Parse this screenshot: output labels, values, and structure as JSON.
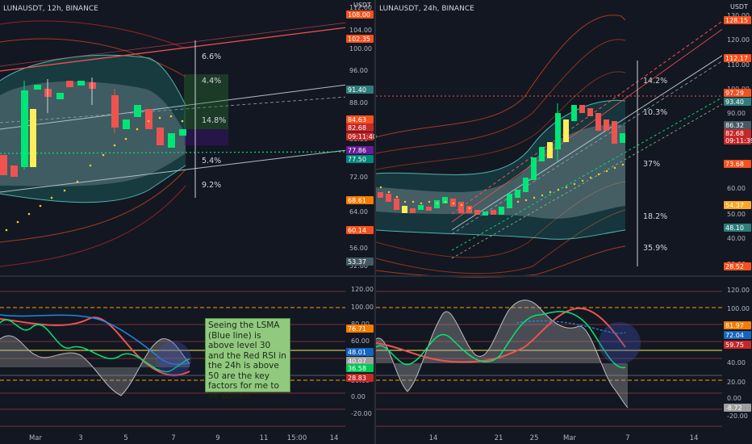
{
  "left_chart": {
    "title": "LUNAUSDT, 12h, BINANCE",
    "currency": "USDT",
    "price_ticks": [
      "112.00",
      "104.00",
      "100.00",
      "96.00",
      "88.00",
      "80.00",
      "72.00",
      "64.00",
      "56.00",
      "52.00"
    ],
    "price_tags": [
      {
        "text": "108.00",
        "color": "#f4511e"
      },
      {
        "text": "102.35",
        "color": "#f4511e"
      },
      {
        "text": "91.40",
        "color": "#2e7d7b"
      },
      {
        "text": "84.63",
        "color": "#f4511e"
      },
      {
        "text": "82.68",
        "color": "#c62828"
      },
      {
        "text": "09:11:40",
        "color": "#c62828"
      },
      {
        "text": "77.86",
        "color": "#6a1b9a"
      },
      {
        "text": "77.50",
        "color": "#00897b"
      },
      {
        "text": "68.61",
        "color": "#f57c00"
      },
      {
        "text": "60.14",
        "color": "#f4511e"
      },
      {
        "text": "53.37",
        "color": "#455a64"
      }
    ],
    "pct_labels": [
      "6.6%",
      "4.4%",
      "14.8%",
      "5.4%",
      "9.2%"
    ],
    "time_labels": [
      "Mar",
      "3",
      "5",
      "7",
      "9",
      "11",
      "15:00",
      "14"
    ],
    "rsi_ticks": [
      "120.00",
      "100.00",
      "80.00",
      "60.00",
      "40.00",
      "20.00",
      "0.00",
      "-20.00"
    ],
    "rsi_tags": [
      {
        "text": "76.71",
        "color": "#f57c00"
      },
      {
        "text": "48.01",
        "color": "#1565c0"
      },
      {
        "text": "40.07",
        "color": "#9e9e9e"
      },
      {
        "text": "36.58",
        "color": "#00c853"
      },
      {
        "text": "28.83",
        "color": "#c62828"
      }
    ],
    "note": "Seeing the LSMA (Blue line) is above level 30 and the Red RSI in the 24h is above 50 are the key factors for me to be bullish"
  },
  "right_chart": {
    "title": "LUNAUSDT, 24h, BINANCE",
    "currency": "USDT",
    "price_ticks": [
      "130.00",
      "120.00",
      "110.00",
      "100.00",
      "90.00",
      "80.00",
      "70.00",
      "60.00",
      "50.00",
      "40.00",
      "30.00"
    ],
    "price_tags": [
      {
        "text": "128.15",
        "color": "#f4511e"
      },
      {
        "text": "112.17",
        "color": "#f4511e"
      },
      {
        "text": "97.29",
        "color": "#f4511e"
      },
      {
        "text": "93.40",
        "color": "#2e7d7b"
      },
      {
        "text": "86.32",
        "color": "#455a64"
      },
      {
        "text": "82.68",
        "color": "#c62828"
      },
      {
        "text": "09:11:39",
        "color": "#c62828"
      },
      {
        "text": "73.68",
        "color": "#f4511e"
      },
      {
        "text": "54.37",
        "color": "#f9a825"
      },
      {
        "text": "48.10",
        "color": "#2e7d7b"
      },
      {
        "text": "28.52",
        "color": "#f4511e"
      }
    ],
    "pct_labels": [
      "14.2%",
      "10.3%",
      "37%",
      "18.2%",
      "35.9%"
    ],
    "time_labels": [
      "14",
      "21",
      "25",
      "Mar",
      "7",
      "14"
    ],
    "rsi_ticks": [
      "120.00",
      "100.00",
      "80.00",
      "60.00",
      "40.00",
      "20.00",
      "0.00",
      "-20.00"
    ],
    "rsi_tags": [
      {
        "text": "81.97",
        "color": "#f57c00"
      },
      {
        "text": "72.04",
        "color": "#1565c0"
      },
      {
        "text": "59.75",
        "color": "#c62828"
      },
      {
        "text": "-8.72",
        "color": "#9e9e9e"
      }
    ]
  }
}
